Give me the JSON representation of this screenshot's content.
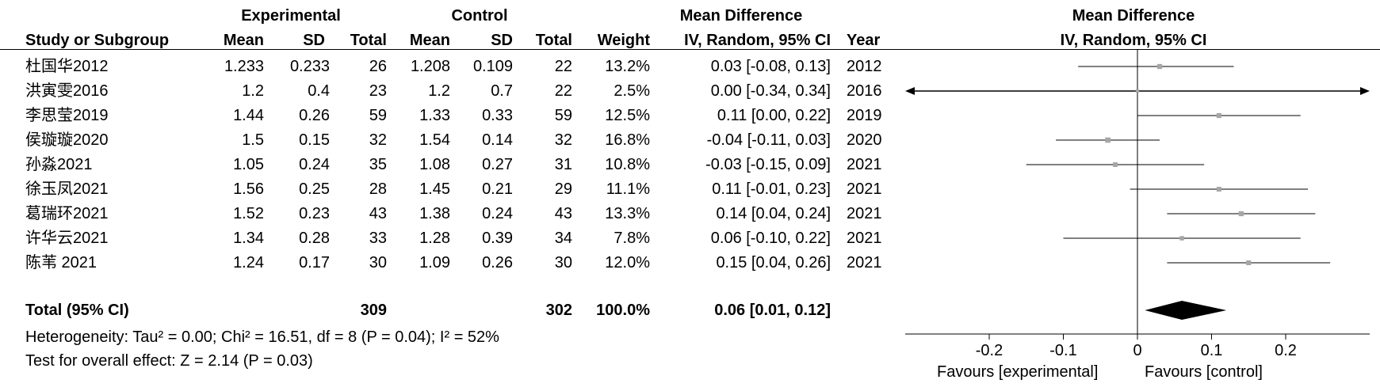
{
  "table": {
    "group_headers": {
      "experimental": "Experimental",
      "control": "Control",
      "mean_difference": "Mean Difference"
    },
    "columns": {
      "study": "Study or Subgroup",
      "e_mean": "Mean",
      "e_sd": "SD",
      "e_total": "Total",
      "c_mean": "Mean",
      "c_sd": "SD",
      "c_total": "Total",
      "weight": "Weight",
      "md": "IV, Random, 95% CI",
      "year": "Year"
    },
    "rows": [
      {
        "study": "杜国华2012",
        "e_mean": "1.233",
        "e_sd": "0.233",
        "e_total": "26",
        "c_mean": "1.208",
        "c_sd": "0.109",
        "c_total": "22",
        "weight": "13.2%",
        "md": "0.03 [-0.08, 0.13]",
        "year": "2012"
      },
      {
        "study": "洪寅雯2016",
        "e_mean": "1.2",
        "e_sd": "0.4",
        "e_total": "23",
        "c_mean": "1.2",
        "c_sd": "0.7",
        "c_total": "22",
        "weight": "2.5%",
        "md": "0.00 [-0.34, 0.34]",
        "year": "2016"
      },
      {
        "study": "李思莹2019",
        "e_mean": "1.44",
        "e_sd": "0.26",
        "e_total": "59",
        "c_mean": "1.33",
        "c_sd": "0.33",
        "c_total": "59",
        "weight": "12.5%",
        "md": "0.11 [0.00, 0.22]",
        "year": "2019"
      },
      {
        "study": "侯璇璇2020",
        "e_mean": "1.5",
        "e_sd": "0.15",
        "e_total": "32",
        "c_mean": "1.54",
        "c_sd": "0.14",
        "c_total": "32",
        "weight": "16.8%",
        "md": "-0.04 [-0.11, 0.03]",
        "year": "2020"
      },
      {
        "study": "孙淼2021",
        "e_mean": "1.05",
        "e_sd": "0.24",
        "e_total": "35",
        "c_mean": "1.08",
        "c_sd": "0.27",
        "c_total": "31",
        "weight": "10.8%",
        "md": "-0.03 [-0.15, 0.09]",
        "year": "2021"
      },
      {
        "study": "徐玉凤2021",
        "e_mean": "1.56",
        "e_sd": "0.25",
        "e_total": "28",
        "c_mean": "1.45",
        "c_sd": "0.21",
        "c_total": "29",
        "weight": "11.1%",
        "md": "0.11 [-0.01, 0.23]",
        "year": "2021"
      },
      {
        "study": "葛瑞环2021",
        "e_mean": "1.52",
        "e_sd": "0.23",
        "e_total": "43",
        "c_mean": "1.38",
        "c_sd": "0.24",
        "c_total": "43",
        "weight": "13.3%",
        "md": "0.14 [0.04, 0.24]",
        "year": "2021"
      },
      {
        "study": "许华云2021",
        "e_mean": "1.34",
        "e_sd": "0.28",
        "e_total": "33",
        "c_mean": "1.28",
        "c_sd": "0.39",
        "c_total": "34",
        "weight": "7.8%",
        "md": "0.06 [-0.10, 0.22]",
        "year": "2021"
      },
      {
        "study": "陈苇 2021",
        "e_mean": "1.24",
        "e_sd": "0.17",
        "e_total": "30",
        "c_mean": "1.09",
        "c_sd": "0.26",
        "c_total": "30",
        "weight": "12.0%",
        "md": "0.15 [0.04, 0.26]",
        "year": "2021"
      }
    ],
    "total": {
      "label": "Total (95% CI)",
      "e_total": "309",
      "c_total": "302",
      "weight": "100.0%",
      "md": "0.06 [0.01, 0.12]"
    },
    "heterogeneity": "Heterogeneity: Tau² = 0.00; Chi² = 16.51, df = 8 (P = 0.04); I² = 52%",
    "overall_effect": "Test for overall effect: Z = 2.14 (P = 0.03)"
  },
  "plot": {
    "title": "Mean Difference",
    "subtitle": "IV, Random, 95% CI",
    "favours_left": "Favours [experimental]",
    "favours_right": "Favours [control]"
  },
  "chart_data": {
    "type": "forest",
    "title": "Mean Difference",
    "subtitle": "IV, Random, 95% CI",
    "xlim": [
      -0.34,
      0.34
    ],
    "xticks": [
      -0.2,
      -0.1,
      0,
      0.1,
      0.2
    ],
    "xtick_labels": [
      "-0.2",
      "-0.1",
      "0",
      "0.1",
      "0.2"
    ],
    "studies": [
      {
        "name": "杜国华2012",
        "estimate": 0.03,
        "lower": -0.08,
        "upper": 0.13,
        "weight": 13.2
      },
      {
        "name": "洪寅雯2016",
        "estimate": 0.0,
        "lower": -0.34,
        "upper": 0.34,
        "weight": 2.5,
        "arrows": true
      },
      {
        "name": "李思莹2019",
        "estimate": 0.11,
        "lower": 0.0,
        "upper": 0.22,
        "weight": 12.5
      },
      {
        "name": "侯璇璇2020",
        "estimate": -0.04,
        "lower": -0.11,
        "upper": 0.03,
        "weight": 16.8
      },
      {
        "name": "孙淼2021",
        "estimate": -0.03,
        "lower": -0.15,
        "upper": 0.09,
        "weight": 10.8
      },
      {
        "name": "徐玉凤2021",
        "estimate": 0.11,
        "lower": -0.01,
        "upper": 0.23,
        "weight": 11.1
      },
      {
        "name": "葛瑞环2021",
        "estimate": 0.14,
        "lower": 0.04,
        "upper": 0.24,
        "weight": 13.3
      },
      {
        "name": "许华云2021",
        "estimate": 0.06,
        "lower": -0.1,
        "upper": 0.22,
        "weight": 7.8
      },
      {
        "name": "陈苇 2021",
        "estimate": 0.15,
        "lower": 0.04,
        "upper": 0.26,
        "weight": 12.0
      }
    ],
    "pooled": {
      "estimate": 0.06,
      "lower": 0.01,
      "upper": 0.12
    },
    "colors": {
      "marker": "#a6a6a6",
      "diamond": "#000000"
    }
  }
}
